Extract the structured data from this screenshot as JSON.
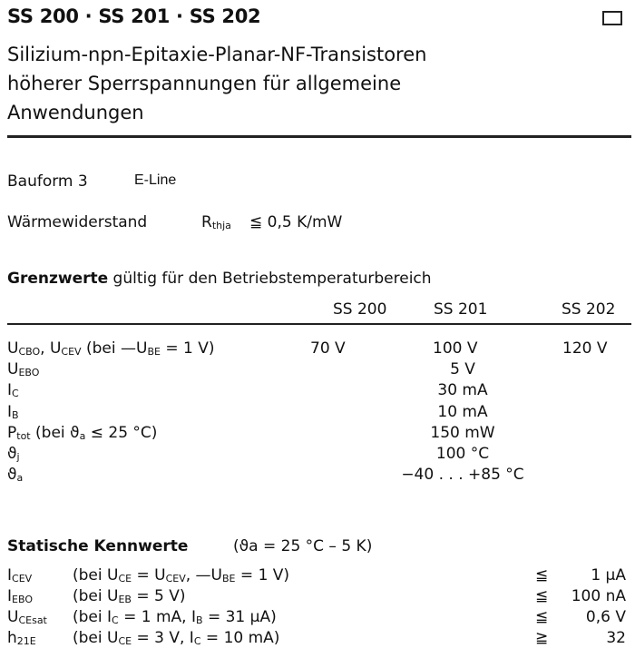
{
  "header": {
    "title": "SS 200 · SS 201 · SS 202",
    "subtitle_lines": [
      "Silizium-npn-Epitaxie-Planar-NF-Transistoren",
      "höherer Sperrspannungen für allgemeine",
      "Anwendungen"
    ]
  },
  "bauform": {
    "label": "Bauform 3",
    "value": "E-Line"
  },
  "waerme": {
    "label": "Wärmewiderstand",
    "symbol": "R",
    "symbol_sub": "thja",
    "value": "≦ 0,5 K/mW"
  },
  "grenzwerte": {
    "heading_bold": "Grenzwerte",
    "heading_rest": " gültig für den Betriebstemperaturbereich",
    "columns": [
      "SS 200",
      "SS 201",
      "SS 202"
    ],
    "rows": [
      {
        "label": [
          [
            "U",
            ""
          ],
          [
            "CBO",
            "s"
          ],
          [
            ", U",
            ""
          ],
          [
            "CEV",
            "s"
          ],
          [
            " (bei —U",
            ""
          ],
          [
            "BE",
            "s"
          ],
          [
            " = 1 V)",
            ""
          ]
        ],
        "values": [
          "70 V",
          "100 V",
          "120 V"
        ]
      },
      {
        "label": [
          [
            "U",
            ""
          ],
          [
            "EBO",
            "s"
          ]
        ],
        "common": "5 V"
      },
      {
        "label": [
          [
            "I",
            ""
          ],
          [
            "C",
            "s"
          ]
        ],
        "common": "30 mA"
      },
      {
        "label": [
          [
            "I",
            ""
          ],
          [
            "B",
            "s"
          ]
        ],
        "common": "10 mA"
      },
      {
        "label": [
          [
            "P",
            ""
          ],
          [
            "tot",
            "s"
          ],
          [
            " (bei ϑ",
            ""
          ],
          [
            "a",
            "s"
          ],
          [
            " ≤ 25 °C)",
            ""
          ]
        ],
        "common": "150 mW"
      },
      {
        "label": [
          [
            "ϑ",
            ""
          ],
          [
            "j",
            "s"
          ]
        ],
        "common": "100 °C"
      },
      {
        "label": [
          [
            "ϑ",
            ""
          ],
          [
            "a",
            "s"
          ]
        ],
        "common": "−40 . . . +85 °C"
      }
    ]
  },
  "statisch": {
    "heading": "Statische Kennwerte",
    "condition": "(ϑa = 25 °C – 5 K)",
    "rows": [
      {
        "label": [
          [
            "I",
            ""
          ],
          [
            "CEV",
            "s"
          ]
        ],
        "cond": [
          [
            "(bei U",
            ""
          ],
          [
            "CE",
            "s"
          ],
          [
            " = U",
            ""
          ],
          [
            "CEV",
            "s"
          ],
          [
            ", —U",
            ""
          ],
          [
            "BE",
            "s"
          ],
          [
            " = 1 V)",
            ""
          ]
        ],
        "cmp": "≦",
        "value": "1 µA"
      },
      {
        "label": [
          [
            "I",
            ""
          ],
          [
            "EBO",
            "s"
          ]
        ],
        "cond": [
          [
            "(bei U",
            ""
          ],
          [
            "EB",
            "s"
          ],
          [
            " = 5 V)",
            ""
          ]
        ],
        "cmp": "≦",
        "value": "100 nA"
      },
      {
        "label": [
          [
            "U",
            ""
          ],
          [
            "CEsat",
            "s"
          ]
        ],
        "cond": [
          [
            "(bei I",
            ""
          ],
          [
            "C",
            "s"
          ],
          [
            "  = 1 mA, I",
            ""
          ],
          [
            "B",
            "s"
          ],
          [
            " = 31 µA)",
            ""
          ]
        ],
        "cmp": "≦",
        "value": "0,6 V"
      },
      {
        "label": [
          [
            "h",
            ""
          ],
          [
            "21E",
            "s"
          ]
        ],
        "cond": [
          [
            "(bei U",
            ""
          ],
          [
            "CE",
            "s"
          ],
          [
            " = 3 V,  I",
            ""
          ],
          [
            "C",
            "s"
          ],
          [
            " = 10 mA)",
            ""
          ]
        ],
        "cmp": "≧",
        "value": "32"
      }
    ]
  }
}
